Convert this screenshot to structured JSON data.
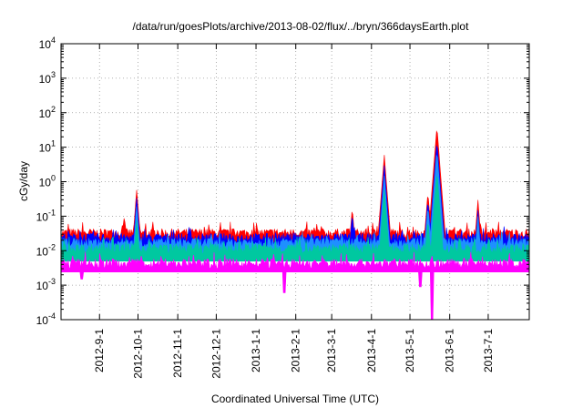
{
  "chart_data": {
    "type": "area",
    "title": "/data/run/goesPlots/archive/2013-08-02/flux/../bryn/366daysEarth.plot",
    "xlabel": "Coordinated Universal Time (UTC)",
    "ylabel": "cGy/day",
    "yscale": "log",
    "ylim": [
      0.0001,
      10000
    ],
    "xlim": [
      "2012-08-02",
      "2013-08-02"
    ],
    "grid": true,
    "x_tick_labels": [
      "2012-9-1",
      "2012-10-1",
      "2012-11-1",
      "2012-12-1",
      "2013-1-1",
      "2013-2-1",
      "2013-3-1",
      "2013-4-1",
      "2013-5-1",
      "2013-6-1",
      "2013-7-1"
    ],
    "y_tick_labels": [
      {
        "base": "10",
        "exp": "-4"
      },
      {
        "base": "10",
        "exp": "-3"
      },
      {
        "base": "10",
        "exp": "-2"
      },
      {
        "base": "10",
        "exp": "-1"
      },
      {
        "base": "10",
        "exp": "0"
      },
      {
        "base": "10",
        "exp": "1"
      },
      {
        "base": "10",
        "exp": "2"
      },
      {
        "base": "10",
        "exp": "3"
      },
      {
        "base": "10",
        "exp": "4"
      }
    ],
    "series": [
      {
        "color": "#ff0000",
        "baseline": 0.03,
        "peaks": [
          [
            "2012-09-30",
            0.6
          ],
          [
            "2012-09-20",
            0.1
          ],
          [
            "2013-03-17",
            0.18
          ],
          [
            "2013-04-11",
            6.0
          ],
          [
            "2013-05-15",
            0.5
          ],
          [
            "2013-05-22",
            40.0
          ],
          [
            "2013-06-23",
            0.3
          ]
        ]
      },
      {
        "color": "#0000ff",
        "baseline": 0.022,
        "peaks": [
          [
            "2012-09-30",
            0.35
          ],
          [
            "2013-03-17",
            0.12
          ],
          [
            "2013-04-11",
            3.0
          ],
          [
            "2013-05-15",
            0.3
          ],
          [
            "2013-05-22",
            15.0
          ],
          [
            "2013-06-23",
            0.15
          ]
        ]
      },
      {
        "color": "#1e90ff",
        "baseline": 0.016,
        "peaks": [
          [
            "2012-09-30",
            0.2
          ],
          [
            "2013-04-11",
            1.5
          ],
          [
            "2013-05-15",
            0.2
          ],
          [
            "2013-05-22",
            8.0
          ],
          [
            "2013-06-23",
            0.1
          ]
        ]
      },
      {
        "color": "#00c8a0",
        "baseline": 0.011,
        "peaks": [
          [
            "2012-09-30",
            0.08
          ],
          [
            "2013-04-11",
            0.6
          ],
          [
            "2013-05-15",
            0.08
          ],
          [
            "2013-05-22",
            2.0
          ]
        ]
      },
      {
        "color": "#ff00ff",
        "baseline": 0.004,
        "dips": [
          [
            "2012-08-18",
            0.0015
          ],
          [
            "2013-01-23",
            0.0006
          ],
          [
            "2013-05-09",
            0.0009
          ],
          [
            "2013-05-18",
            0.0001
          ]
        ]
      }
    ]
  }
}
